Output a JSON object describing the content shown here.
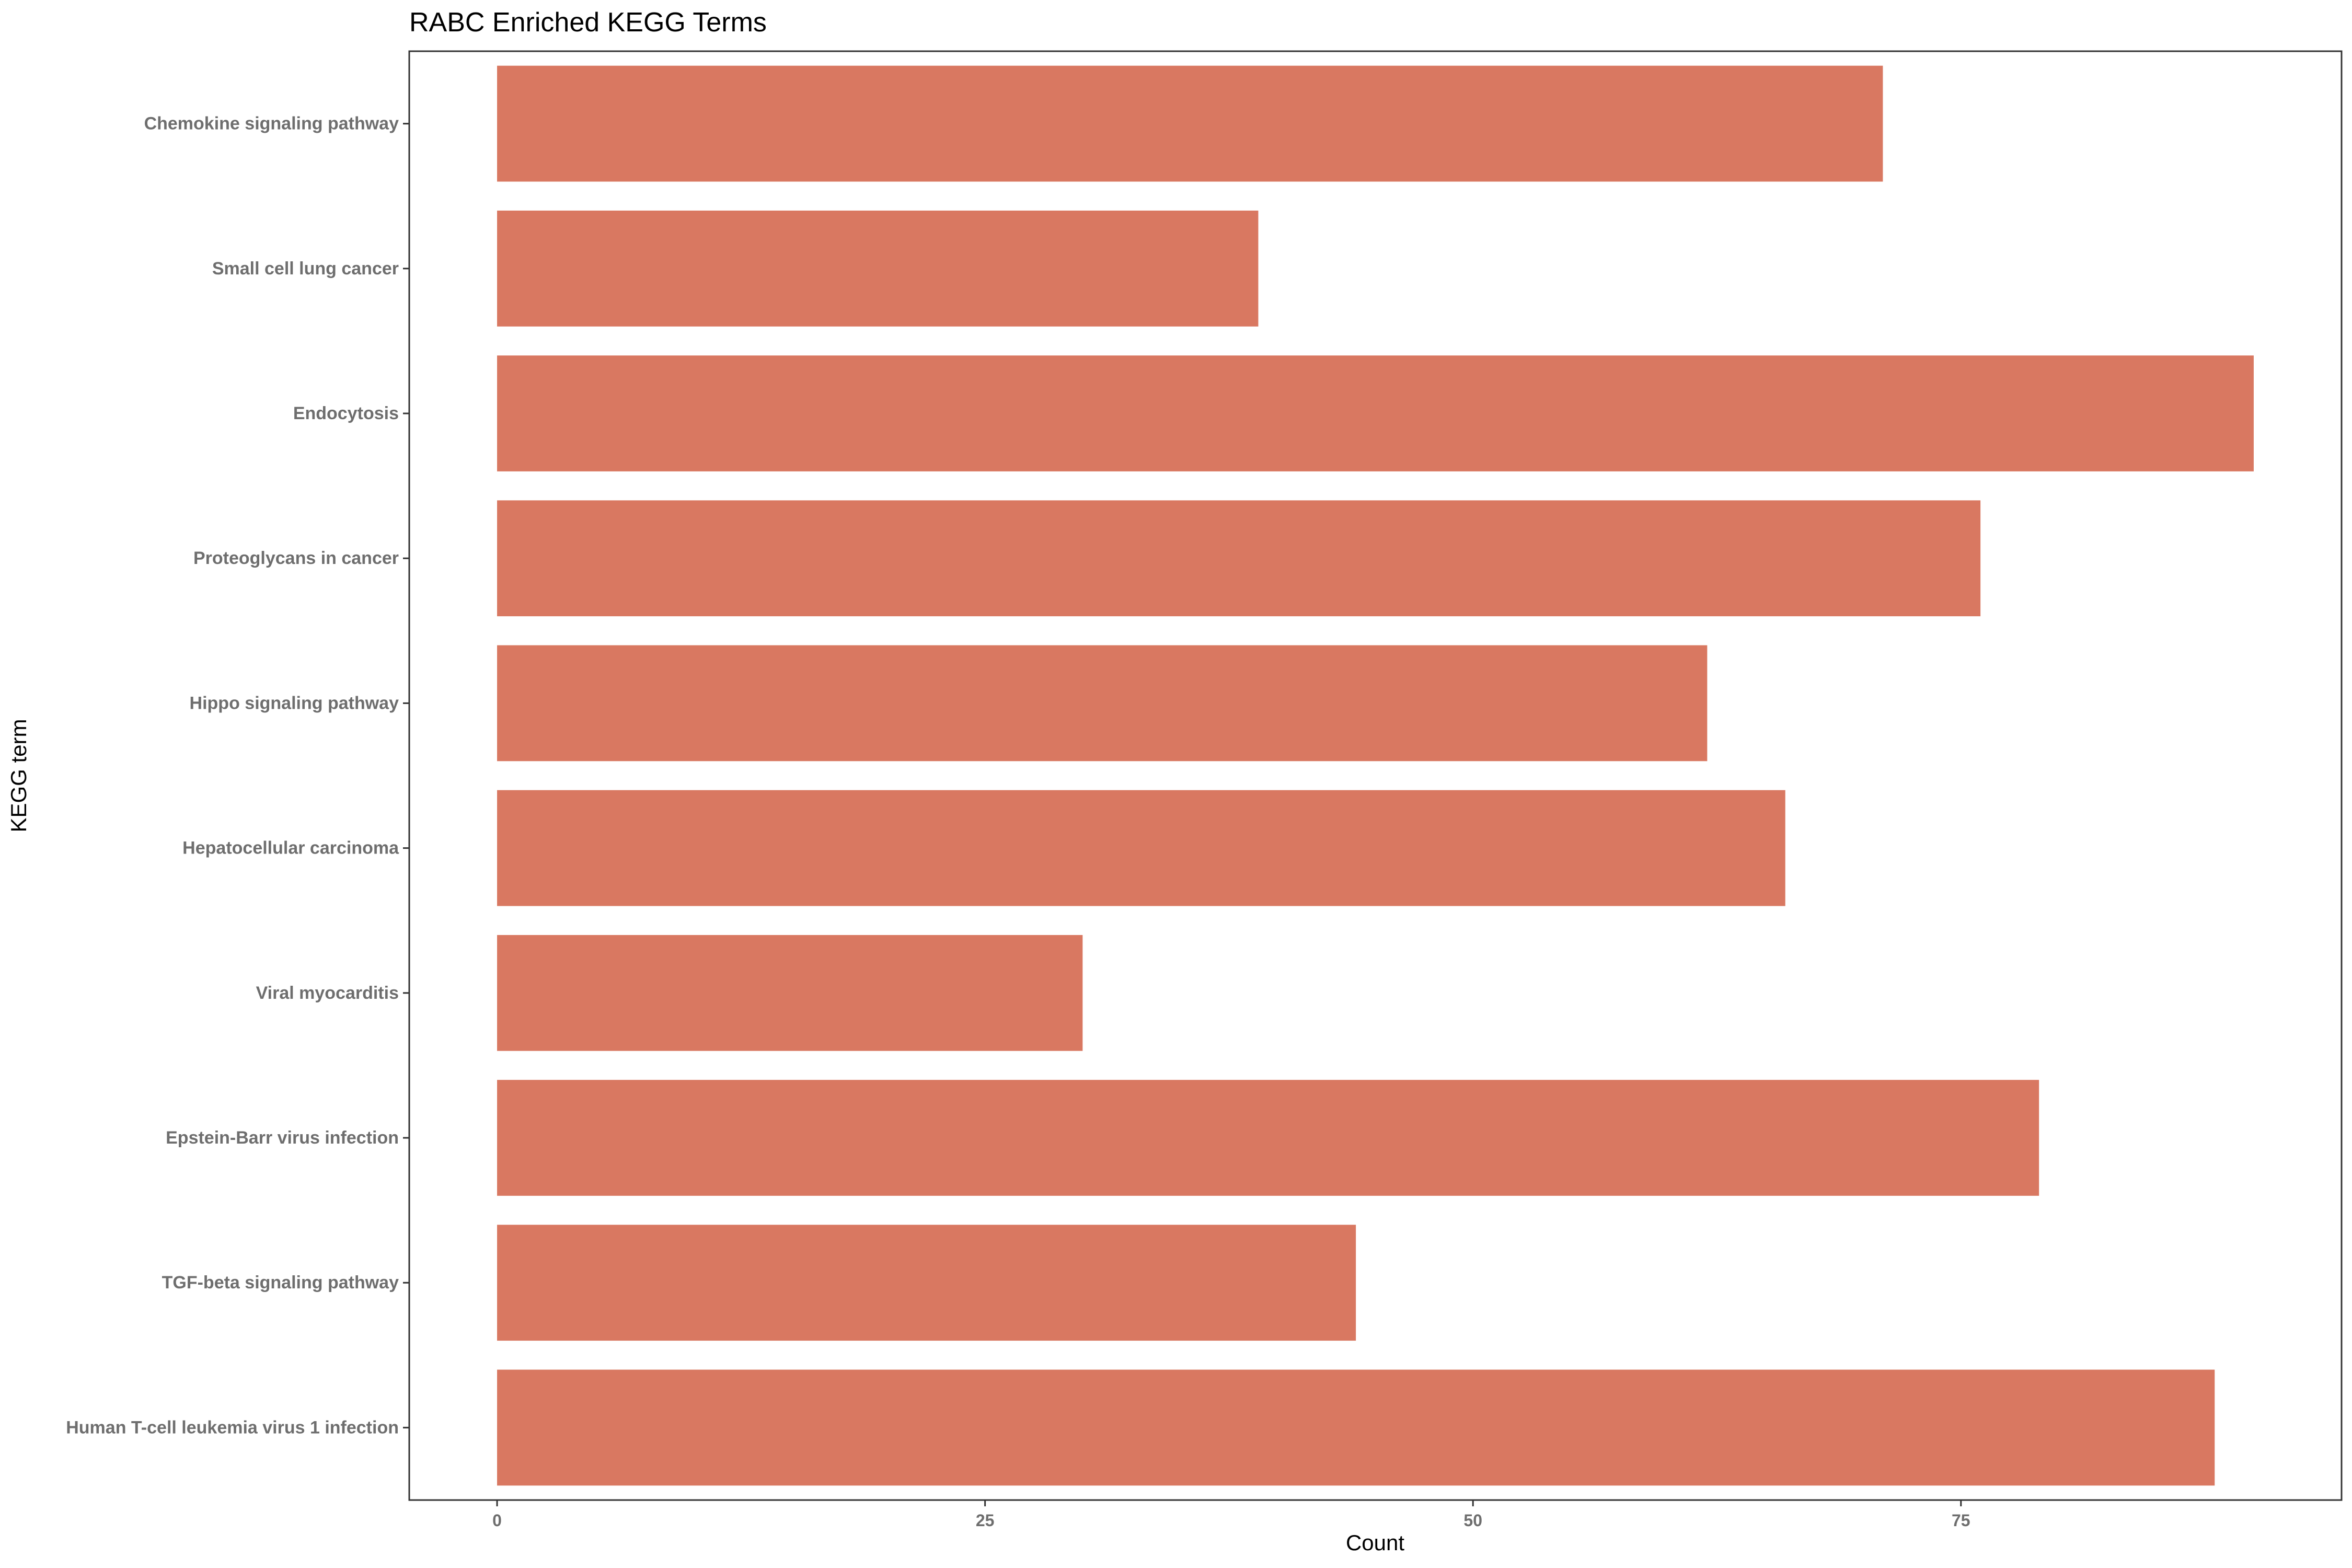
{
  "chart_data": {
    "type": "bar",
    "orientation": "horizontal",
    "title": "RABC Enriched KEGG Terms",
    "xlabel": "Count",
    "ylabel": "KEGG term",
    "categories": [
      "Chemokine signaling pathway",
      "Small cell lung cancer",
      "Endocytosis",
      "Proteoglycans in cancer",
      "Hippo signaling pathway",
      "Hepatocellular carcinoma",
      "Viral myocarditis",
      "Epstein-Barr virus infection",
      "TGF-beta signaling pathway",
      "Human T-cell leukemia virus 1 infection"
    ],
    "values": [
      71,
      39,
      90,
      76,
      62,
      66,
      30,
      79,
      44,
      88
    ],
    "xlim": [
      -4.5,
      94.5
    ],
    "xticks": [
      0,
      25,
      50,
      75
    ],
    "xtick_labels": [
      "0",
      "25",
      "50",
      "75"
    ],
    "bar_color": "#d97861",
    "grid": false,
    "legend": "none"
  }
}
